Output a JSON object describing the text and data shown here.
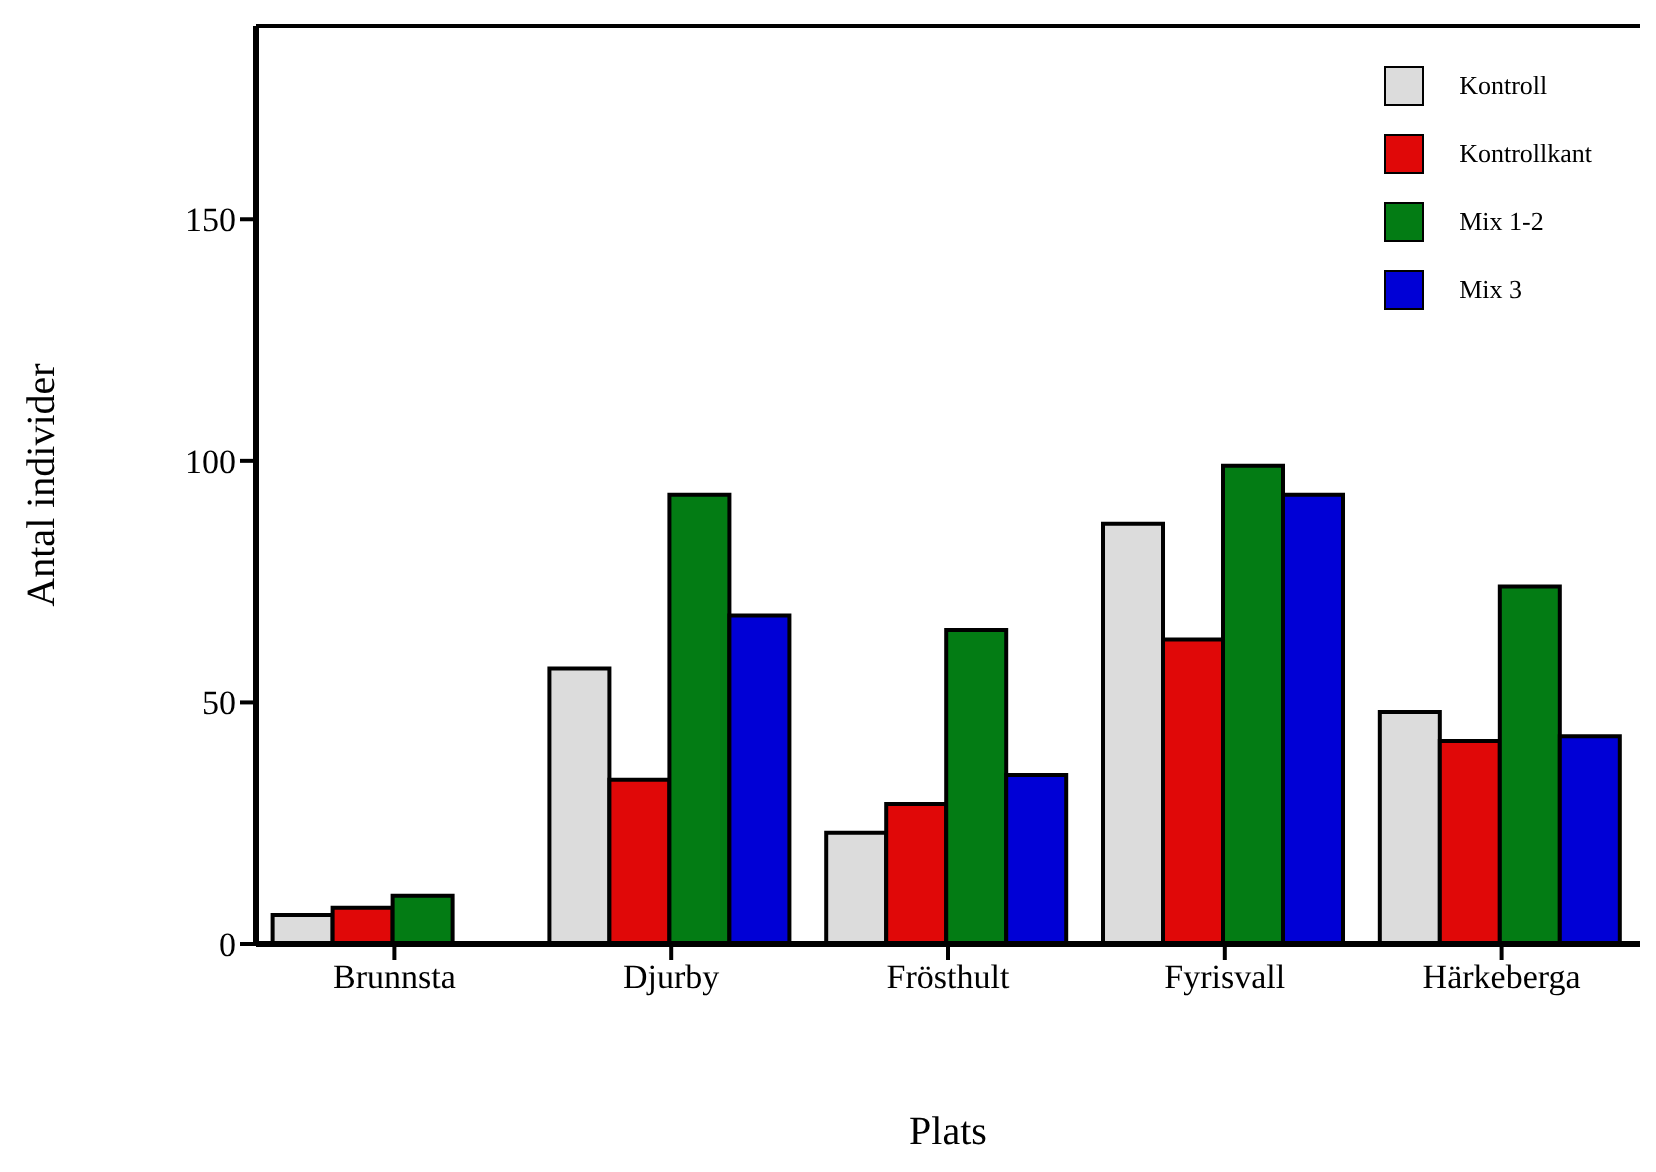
{
  "chart_data": {
    "type": "bar",
    "xlabel": "Plats",
    "ylabel": "Antal individer",
    "categories": [
      "Brunnsta",
      "Djurby",
      "Frösthult",
      "Fyrisvall",
      "Härkeberga"
    ],
    "series": [
      {
        "name": "Kontroll",
        "color": "#dcdcdc",
        "values": [
          6,
          57,
          23,
          87,
          48
        ]
      },
      {
        "name": "Kontrollkant",
        "color": "#e00808",
        "values": [
          7.5,
          34,
          29,
          63,
          42
        ]
      },
      {
        "name": "Mix 1-2",
        "color": "#037c14",
        "values": [
          10,
          93,
          65,
          99,
          74
        ]
      },
      {
        "name": "Mix 3",
        "color": "#0000d6",
        "values": [
          0,
          68,
          35,
          93,
          43
        ]
      }
    ],
    "ylim": [
      0,
      190
    ],
    "yticks": [
      0,
      50,
      100,
      150
    ],
    "legend": "top right"
  }
}
